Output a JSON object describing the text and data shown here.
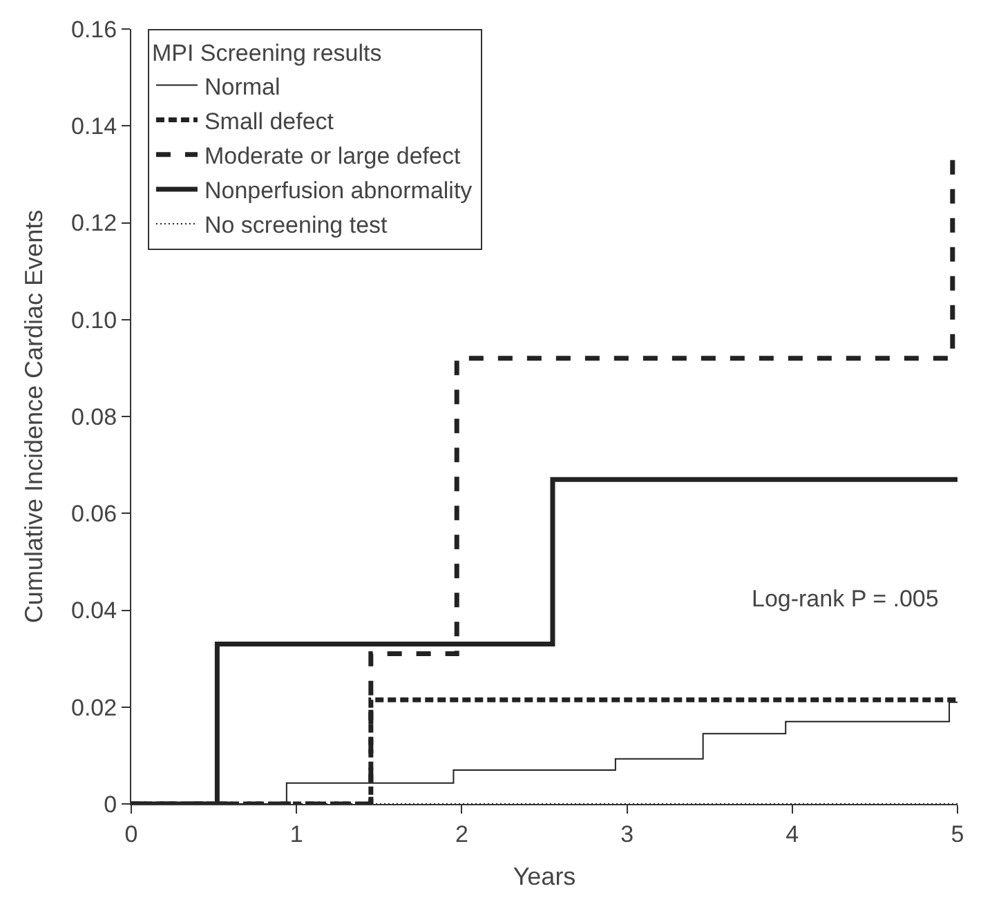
{
  "chart_data": {
    "type": "step",
    "xlabel": "Years",
    "ylabel": "Cumulative Incidence Cardiac Events",
    "legend_title": "MPI Screening results",
    "legend": "top left",
    "xlim": [
      0,
      5
    ],
    "xticks": [
      0,
      1,
      2,
      3,
      4,
      5
    ],
    "ylim": [
      0,
      0.16
    ],
    "yticks": [
      0,
      {
        "value": 0.02,
        "label": "0.02"
      },
      {
        "value": 0.04,
        "label": "0.04"
      },
      {
        "value": 0.06,
        "label": "0.06"
      },
      {
        "value": 0.08,
        "label": "0.08"
      },
      {
        "value": 0.1,
        "label": "0.10"
      },
      {
        "value": 0.12,
        "label": "0.12"
      },
      {
        "value": 0.14,
        "label": "0.14"
      },
      {
        "value": 0.16,
        "label": "0.16"
      }
    ],
    "grid": false,
    "series": [
      {
        "name": "Normal",
        "color": "#222222",
        "line_style": "solid",
        "x": [
          0,
          0.94,
          1.95,
          2.93,
          3.46,
          3.96,
          4.95,
          5
        ],
        "values": [
          0,
          0.0043,
          0.007,
          0.0093,
          0.0145,
          0.017,
          0.021,
          0.021
        ]
      },
      {
        "name": "Small defect",
        "color": "#222222",
        "line_style": "dotted",
        "x": [
          0,
          1.45,
          5
        ],
        "values": [
          0,
          0.0215,
          0.0215
        ]
      },
      {
        "name": "Moderate or large defect",
        "color": "#222222",
        "line_style": "dashed",
        "x": [
          0,
          1.45,
          1.97,
          4.97,
          5
        ],
        "values": [
          0,
          0.031,
          0.092,
          0.133,
          0.133
        ]
      },
      {
        "name": "Nonperfusion abnormality",
        "color": "#222222",
        "line_style": "solid",
        "x": [
          0,
          0.52,
          2.55,
          5
        ],
        "values": [
          0,
          0.033,
          0.067,
          0.067
        ]
      },
      {
        "name": "No screening test",
        "color": "#222222",
        "line_style": "dotted",
        "x": [
          0,
          5
        ],
        "values": [
          0,
          0
        ]
      }
    ],
    "annotations": [
      "Log-rank P = .005"
    ]
  }
}
